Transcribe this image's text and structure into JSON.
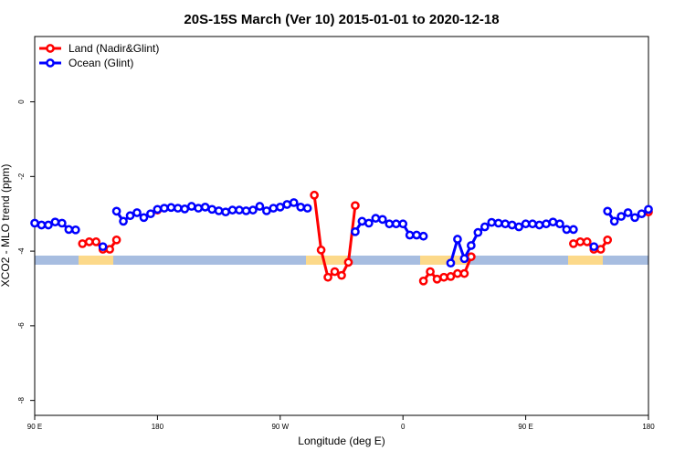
{
  "chart_data": {
    "type": "line",
    "title": "20S-15S March (Ver 10)   2015-01-01 to 2020-12-18",
    "x_label": "Longitude (deg E)",
    "y_label": "XCO2 - MLO trend (ppm)",
    "xlim": [
      90,
      540
    ],
    "ylim": [
      -8.4,
      1.75
    ],
    "xticks": [
      {
        "value": 90,
        "label": "90 E"
      },
      {
        "value": 180,
        "label": "180"
      },
      {
        "value": 270,
        "label": "90 W"
      },
      {
        "value": 360,
        "label": "0"
      },
      {
        "value": 450,
        "label": "90 E"
      },
      {
        "value": 540,
        "label": "180"
      }
    ],
    "yticks": [
      -8,
      -6,
      -4,
      -2,
      0
    ],
    "legend": "top-left",
    "x": [
      90,
      95,
      100,
      105,
      110,
      115,
      120,
      125,
      130,
      135,
      140,
      145,
      150,
      155,
      160,
      165,
      170,
      175,
      180,
      185,
      190,
      195,
      200,
      205,
      210,
      215,
      220,
      225,
      230,
      235,
      240,
      245,
      250,
      255,
      260,
      265,
      270,
      275,
      280,
      285,
      290,
      295,
      300,
      305,
      310,
      315,
      320,
      325,
      330,
      335,
      340,
      345,
      350,
      355,
      360,
      365,
      370,
      375,
      380,
      385,
      390,
      395,
      400,
      405,
      410,
      415,
      420,
      425,
      430,
      435,
      440,
      445,
      450,
      455,
      460,
      465,
      470,
      475,
      480,
      485,
      490,
      495,
      500,
      505,
      510,
      515,
      520,
      525,
      530,
      535,
      540
    ],
    "series": [
      {
        "name": "Land (Nadir&Glint)",
        "color": "#ff0000",
        "values": [
          null,
          null,
          null,
          null,
          null,
          null,
          null,
          -3.8,
          -3.75,
          -3.75,
          -3.95,
          -3.95,
          -3.7,
          null,
          null,
          null,
          null,
          null,
          -2.9,
          null,
          null,
          null,
          null,
          null,
          null,
          null,
          null,
          null,
          null,
          null,
          null,
          null,
          null,
          null,
          null,
          null,
          null,
          null,
          null,
          null,
          null,
          -2.5,
          -3.97,
          -4.7,
          -4.55,
          -4.65,
          -4.3,
          -2.78,
          null,
          null,
          null,
          null,
          null,
          null,
          null,
          null,
          null,
          -4.8,
          -4.55,
          -4.75,
          -4.7,
          -4.68,
          -4.6,
          -4.6,
          -4.15,
          null,
          null,
          null,
          null,
          null,
          null,
          null,
          null,
          null,
          null,
          null,
          null,
          null,
          null,
          -3.8,
          -3.75,
          -3.75,
          -3.95,
          -3.95,
          -3.7,
          null,
          null,
          null,
          null,
          null,
          -2.95
        ]
      },
      {
        "name": "Ocean (Glint)",
        "color": "#0000ff",
        "values": [
          -3.25,
          -3.3,
          -3.3,
          -3.22,
          -3.25,
          -3.42,
          -3.43,
          null,
          null,
          null,
          -3.88,
          null,
          -2.93,
          -3.2,
          -3.05,
          -2.97,
          -3.1,
          -3.0,
          -2.88,
          -2.85,
          -2.83,
          -2.85,
          -2.87,
          -2.8,
          -2.85,
          -2.82,
          -2.88,
          -2.92,
          -2.95,
          -2.9,
          -2.9,
          -2.92,
          -2.9,
          -2.8,
          -2.92,
          -2.85,
          -2.82,
          -2.75,
          -2.7,
          -2.82,
          -2.85,
          null,
          null,
          null,
          null,
          null,
          null,
          -3.48,
          -3.2,
          -3.25,
          -3.12,
          -3.15,
          -3.27,
          -3.27,
          -3.27,
          -3.57,
          -3.57,
          -3.6,
          null,
          null,
          null,
          -4.32,
          -3.68,
          -4.2,
          -3.85,
          -3.5,
          -3.35,
          -3.23,
          -3.25,
          -3.27,
          -3.3,
          -3.35,
          -3.27,
          -3.27,
          -3.3,
          -3.27,
          -3.22,
          -3.27,
          -3.42,
          -3.42,
          null,
          null,
          -3.88,
          null,
          -2.93,
          -3.2,
          -3.07,
          -2.97,
          -3.1,
          -3.0,
          -2.88
        ]
      }
    ]
  }
}
